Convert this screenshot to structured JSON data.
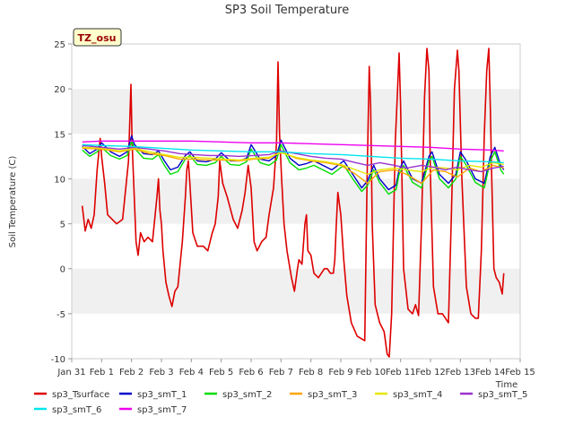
{
  "chart_data": {
    "type": "line",
    "title": "SP3 Soil Temperature",
    "xlabel": "Time",
    "ylabel": "Soil Temperature (C)",
    "annotation": "TZ_osu",
    "xlim": [
      0,
      15
    ],
    "ylim": [
      -10,
      25
    ],
    "x_tick_values": [
      0,
      1,
      2,
      3,
      4,
      5,
      6,
      7,
      8,
      9,
      10,
      11,
      12,
      13,
      14,
      15
    ],
    "x_tick_labels": [
      "Jan 31",
      "Feb 1",
      "Feb 2",
      "Feb 3",
      "Feb 4",
      "Feb 5",
      "Feb 6",
      "Feb 7",
      "Feb 8",
      "Feb 9",
      "Feb 10",
      "Feb 11",
      "Feb 12",
      "Feb 13",
      "Feb 14",
      "Feb 15"
    ],
    "y_ticks": [
      -10,
      -5,
      0,
      5,
      10,
      15,
      20,
      25
    ],
    "grid": "horizontal bands",
    "legend_position": "bottom",
    "series": [
      {
        "name": "sp3_Tsurface",
        "color": "#dd0000",
        "x": [
          0.35,
          0.45,
          0.55,
          0.65,
          0.75,
          0.85,
          0.95,
          1.0,
          1.1,
          1.2,
          1.35,
          1.5,
          1.7,
          1.9,
          1.98,
          2.02,
          2.08,
          2.15,
          2.22,
          2.3,
          2.42,
          2.55,
          2.7,
          2.85,
          2.9,
          2.95,
          3.0,
          3.05,
          3.15,
          3.25,
          3.35,
          3.45,
          3.55,
          3.7,
          3.8,
          3.85,
          3.9,
          3.95,
          4.05,
          4.2,
          4.4,
          4.55,
          4.7,
          4.8,
          4.9,
          4.95,
          5.05,
          5.2,
          5.4,
          5.55,
          5.7,
          5.8,
          5.9,
          6.0,
          6.1,
          6.2,
          6.35,
          6.5,
          6.6,
          6.75,
          6.85,
          6.9,
          6.95,
          7.02,
          7.1,
          7.2,
          7.35,
          7.45,
          7.55,
          7.6,
          7.7,
          7.8,
          7.85,
          7.9,
          8.0,
          8.1,
          8.25,
          8.45,
          8.55,
          8.65,
          8.75,
          8.8,
          8.85,
          8.9,
          9.0,
          9.1,
          9.2,
          9.35,
          9.55,
          9.7,
          9.8,
          9.88,
          9.95,
          10.0,
          10.05,
          10.15,
          10.3,
          10.45,
          10.55,
          10.62,
          10.7,
          10.82,
          10.9,
          10.95,
          11.0,
          11.1,
          11.25,
          11.4,
          11.5,
          11.6,
          11.7,
          11.8,
          11.88,
          11.95,
          12.0,
          12.1,
          12.25,
          12.4,
          12.5,
          12.6,
          12.7,
          12.8,
          12.9,
          12.95,
          13.05,
          13.2,
          13.35,
          13.5,
          13.6,
          13.7,
          13.8,
          13.88,
          13.95,
          14.0,
          14.05,
          14.12,
          14.2,
          14.3,
          14.4,
          14.45
        ],
        "y": [
          7.0,
          4.2,
          5.5,
          4.5,
          6.0,
          11.0,
          14.5,
          12.5,
          9.5,
          6.0,
          5.5,
          5.0,
          5.5,
          12.0,
          20.5,
          14.0,
          9.0,
          3.0,
          1.5,
          4.0,
          3.0,
          3.5,
          3.0,
          8.0,
          10.0,
          6.5,
          5.0,
          2.0,
          -1.5,
          -3.0,
          -4.2,
          -2.5,
          -2.0,
          3.0,
          8.0,
          11.0,
          12.0,
          9.5,
          4.0,
          2.5,
          2.5,
          2.0,
          4.0,
          5.0,
          8.0,
          12.0,
          9.5,
          8.0,
          5.5,
          4.5,
          6.5,
          8.5,
          11.5,
          9.0,
          3.0,
          2.0,
          3.0,
          3.5,
          6.0,
          9.0,
          14.0,
          23.0,
          15.0,
          10.0,
          5.0,
          2.0,
          -1.0,
          -2.5,
          0.0,
          1.0,
          0.5,
          5.0,
          6.0,
          2.0,
          1.5,
          -0.5,
          -1.0,
          0.0,
          0.0,
          -0.5,
          -0.5,
          1.0,
          5.0,
          8.5,
          6.0,
          1.0,
          -3.0,
          -6.0,
          -7.5,
          -7.8,
          -8.0,
          10.0,
          22.5,
          18.0,
          5.0,
          -4.0,
          -6.0,
          -7.0,
          -9.5,
          -9.8,
          -5.0,
          14.0,
          20.0,
          24.0,
          18.0,
          0.0,
          -4.5,
          -5.0,
          -4.0,
          -5.2,
          5.0,
          19.0,
          24.5,
          22.0,
          10.0,
          -2.0,
          -5.0,
          -5.0,
          -5.5,
          -6.0,
          6.0,
          20.0,
          24.3,
          22.0,
          10.0,
          -2.0,
          -5.0,
          -5.5,
          -5.5,
          2.0,
          15.0,
          22.0,
          24.5,
          18.0,
          10.0,
          0.0,
          -1.0,
          -1.5,
          -2.8,
          -0.5
        ]
      },
      {
        "name": "sp3_smT_1",
        "color": "#0000cc",
        "x": [
          0.35,
          0.6,
          0.85,
          1.0,
          1.3,
          1.6,
          1.85,
          2.0,
          2.1,
          2.4,
          2.7,
          2.9,
          3.1,
          3.3,
          3.55,
          3.8,
          3.95,
          4.2,
          4.5,
          4.8,
          5.0,
          5.3,
          5.6,
          5.85,
          6.0,
          6.3,
          6.6,
          6.85,
          7.0,
          7.3,
          7.6,
          7.85,
          8.1,
          8.4,
          8.7,
          8.9,
          9.1,
          9.4,
          9.7,
          9.9,
          10.1,
          10.3,
          10.6,
          10.85,
          10.95,
          11.1,
          11.4,
          11.7,
          11.95,
          12.05,
          12.3,
          12.6,
          12.85,
          13.0,
          13.2,
          13.5,
          13.8,
          14.0,
          14.15,
          14.35,
          14.45
        ],
        "y": [
          13.6,
          12.8,
          13.3,
          14.0,
          13.0,
          12.5,
          13.0,
          14.8,
          13.8,
          12.8,
          12.7,
          13.1,
          12.0,
          11.0,
          11.3,
          12.6,
          13.0,
          12.0,
          11.9,
          12.2,
          12.9,
          12.0,
          12.0,
          12.3,
          13.8,
          12.2,
          12.0,
          12.6,
          14.3,
          12.3,
          11.5,
          11.7,
          12.0,
          11.5,
          11.0,
          11.5,
          12.0,
          10.5,
          9.0,
          9.8,
          11.5,
          10.0,
          8.8,
          9.3,
          11.0,
          12.0,
          10.0,
          9.5,
          12.5,
          13.0,
          10.5,
          9.5,
          10.5,
          13.0,
          12.0,
          10.0,
          9.5,
          12.5,
          13.5,
          11.5,
          11.0
        ]
      },
      {
        "name": "sp3_smT_2",
        "color": "#00dd00",
        "x": [
          0.35,
          0.6,
          0.85,
          1.0,
          1.3,
          1.6,
          1.85,
          2.0,
          2.1,
          2.4,
          2.7,
          2.9,
          3.1,
          3.3,
          3.55,
          3.8,
          3.95,
          4.2,
          4.5,
          4.8,
          5.0,
          5.3,
          5.6,
          5.85,
          6.0,
          6.3,
          6.6,
          6.85,
          7.0,
          7.3,
          7.6,
          7.85,
          8.1,
          8.4,
          8.7,
          8.9,
          9.1,
          9.4,
          9.7,
          9.9,
          10.1,
          10.3,
          10.6,
          10.85,
          10.95,
          11.1,
          11.4,
          11.7,
          11.95,
          12.05,
          12.3,
          12.6,
          12.85,
          13.0,
          13.2,
          13.5,
          13.8,
          14.0,
          14.15,
          14.35,
          14.45
        ],
        "y": [
          13.2,
          12.5,
          13.0,
          13.5,
          12.6,
          12.2,
          12.6,
          14.2,
          13.4,
          12.3,
          12.2,
          12.7,
          11.5,
          10.5,
          10.8,
          12.2,
          12.6,
          11.6,
          11.5,
          11.8,
          12.5,
          11.6,
          11.5,
          11.9,
          13.3,
          11.8,
          11.5,
          12.1,
          13.8,
          11.8,
          11.0,
          11.2,
          11.5,
          11.0,
          10.5,
          11.0,
          11.5,
          10.0,
          8.6,
          9.3,
          11.0,
          9.6,
          8.3,
          8.8,
          10.5,
          11.5,
          9.6,
          9.0,
          12.0,
          12.5,
          10.0,
          9.0,
          10.0,
          12.5,
          11.5,
          9.6,
          9.0,
          12.0,
          13.0,
          11.0,
          10.5
        ]
      },
      {
        "name": "sp3_smT_3",
        "color": "#ffa500",
        "x": [
          0.35,
          1.0,
          1.6,
          2.1,
          2.6,
          3.1,
          3.6,
          4.1,
          4.6,
          5.1,
          5.6,
          6.1,
          6.6,
          7.0,
          7.5,
          8.0,
          8.5,
          9.0,
          9.5,
          9.9,
          10.3,
          10.8,
          11.2,
          11.7,
          12.1,
          12.5,
          12.9,
          13.3,
          13.7,
          14.1,
          14.45
        ],
        "y": [
          13.4,
          13.3,
          13.0,
          13.3,
          12.8,
          12.6,
          12.2,
          12.2,
          12.1,
          12.1,
          12.0,
          12.2,
          12.3,
          13.0,
          12.3,
          12.0,
          11.8,
          11.5,
          10.5,
          9.5,
          10.8,
          11.0,
          10.5,
          9.5,
          11.0,
          10.8,
          10.2,
          11.2,
          10.8,
          11.5,
          11.2
        ]
      },
      {
        "name": "sp3_smT_4",
        "color": "#e6e600",
        "x": [
          0.35,
          1.0,
          1.6,
          2.1,
          2.6,
          3.1,
          3.6,
          4.1,
          4.6,
          5.1,
          5.6,
          6.1,
          6.6,
          7.0,
          7.5,
          8.0,
          8.5,
          9.0,
          9.5,
          9.9,
          10.3,
          10.8,
          11.2,
          11.7,
          12.1,
          12.5,
          12.9,
          13.3,
          13.7,
          14.1,
          14.45
        ],
        "y": [
          13.5,
          13.4,
          13.1,
          13.4,
          13.0,
          12.7,
          12.4,
          12.4,
          12.3,
          12.2,
          12.1,
          12.3,
          12.4,
          12.9,
          12.4,
          12.1,
          11.9,
          11.6,
          11.0,
          10.5,
          11.0,
          11.2,
          11.0,
          10.8,
          11.3,
          11.2,
          11.0,
          11.5,
          11.3,
          11.8,
          11.6
        ]
      },
      {
        "name": "sp3_smT_5",
        "color": "#9933cc",
        "x": [
          0.35,
          1.0,
          1.6,
          2.1,
          2.6,
          3.1,
          3.6,
          4.1,
          4.6,
          5.1,
          5.6,
          6.1,
          6.6,
          7.0,
          7.5,
          8.0,
          8.5,
          9.0,
          9.5,
          9.9,
          10.3,
          10.8,
          11.2,
          11.7,
          12.1,
          12.5,
          12.9,
          13.3,
          13.7,
          14.1,
          14.45
        ],
        "y": [
          13.7,
          13.5,
          13.3,
          13.5,
          13.3,
          13.1,
          12.8,
          12.7,
          12.6,
          12.6,
          12.5,
          12.6,
          12.7,
          13.1,
          12.8,
          12.5,
          12.3,
          12.2,
          11.8,
          11.5,
          11.8,
          11.5,
          11.2,
          11.5,
          11.3,
          11.0,
          11.3,
          11.0,
          10.8,
          11.2,
          11.4
        ]
      },
      {
        "name": "sp3_smT_6",
        "color": "#00e5ee",
        "x": [
          0.35,
          1.0,
          2.0,
          3.0,
          4.0,
          5.0,
          6.0,
          7.0,
          8.0,
          9.0,
          10.0,
          11.0,
          12.0,
          13.0,
          14.0,
          14.45
        ],
        "y": [
          13.8,
          13.7,
          13.6,
          13.4,
          13.2,
          13.1,
          13.0,
          13.0,
          12.8,
          12.7,
          12.5,
          12.3,
          12.2,
          12.0,
          11.9,
          11.8
        ]
      },
      {
        "name": "sp3_smT_7",
        "color": "#ee00ee",
        "x": [
          0.35,
          1.0,
          2.0,
          3.0,
          4.0,
          5.0,
          6.0,
          7.0,
          8.0,
          9.0,
          10.0,
          11.0,
          12.0,
          13.0,
          14.0,
          14.45
        ],
        "y": [
          14.1,
          14.2,
          14.2,
          14.2,
          14.2,
          14.1,
          14.0,
          14.0,
          13.9,
          13.8,
          13.7,
          13.6,
          13.5,
          13.3,
          13.2,
          13.1
        ]
      }
    ]
  }
}
